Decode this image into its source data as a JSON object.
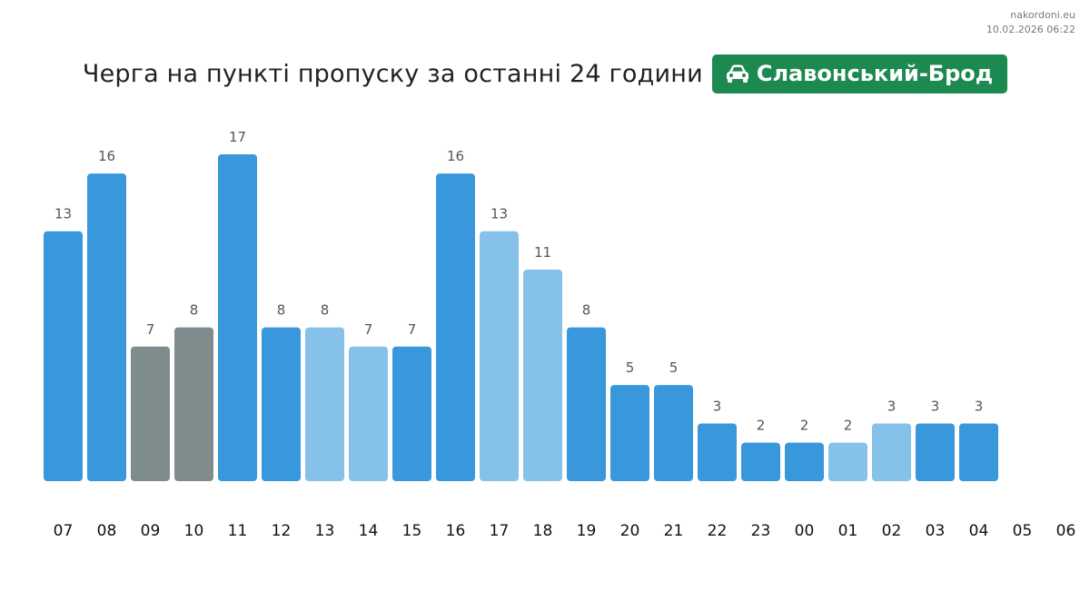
{
  "source": {
    "site": "nakordoni.eu",
    "timestamp": "10.02.2026 06:22"
  },
  "header": {
    "title": "Черга на пункті пропуску за останні 24 години",
    "badge_label": "Славонський-Брод",
    "badge_icon": "car-icon",
    "badge_color": "#1c8a50"
  },
  "colors": {
    "dark_blue": "#3898db",
    "light_blue": "#85c1e9",
    "gray": "#7f8c8d"
  },
  "chart_data": {
    "type": "bar",
    "title": "Черга на пункті пропуску за останні 24 години",
    "categories": [
      "07",
      "08",
      "09",
      "10",
      "11",
      "12",
      "13",
      "14",
      "15",
      "16",
      "17",
      "18",
      "19",
      "20",
      "21",
      "22",
      "23",
      "00",
      "01",
      "02",
      "03",
      "04",
      "05",
      "06"
    ],
    "values": [
      13,
      16,
      7,
      8,
      17,
      8,
      8,
      7,
      7,
      16,
      13,
      11,
      8,
      5,
      5,
      3,
      2,
      2,
      2,
      3,
      3,
      3,
      null,
      null
    ],
    "bar_colors": [
      "dark_blue",
      "dark_blue",
      "gray",
      "gray",
      "dark_blue",
      "dark_blue",
      "light_blue",
      "light_blue",
      "dark_blue",
      "dark_blue",
      "light_blue",
      "light_blue",
      "dark_blue",
      "dark_blue",
      "dark_blue",
      "dark_blue",
      "dark_blue",
      "dark_blue",
      "light_blue",
      "light_blue",
      "dark_blue",
      "dark_blue",
      null,
      null
    ],
    "data_labels": true,
    "grid": false,
    "legend": "none",
    "ylim": [
      0,
      17
    ]
  }
}
